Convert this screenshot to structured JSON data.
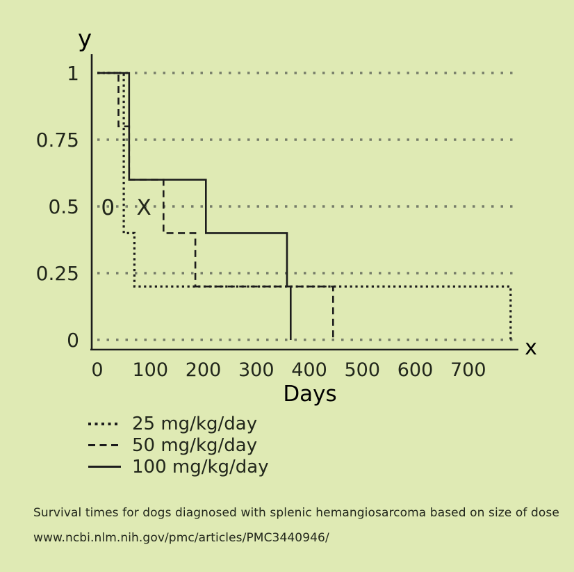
{
  "colors": {
    "background": "#dfeab4",
    "line": "#1c1c1c",
    "grid": "#6b7261",
    "text": "#21261b"
  },
  "chart_data": {
    "type": "line",
    "subtype": "kaplan-meier-step",
    "title": "",
    "xlabel": "Days",
    "ylabel": "",
    "x_axis_letter": "x",
    "y_axis_letter": "y",
    "xlim": [
      0,
      800
    ],
    "ylim": [
      0,
      1
    ],
    "x_ticks": [
      0,
      100,
      200,
      300,
      400,
      500,
      600,
      700
    ],
    "x_tick_labels": [
      "0",
      "100",
      "200",
      "300",
      "400",
      "500",
      "600",
      "700"
    ],
    "y_ticks": [
      0,
      0.25,
      0.5,
      0.75,
      1
    ],
    "y_tick_labels": [
      "0",
      "0.25",
      "0.5",
      "0.75",
      "1"
    ],
    "grid": "horizontal-dotted",
    "legend_position": "below-left",
    "series": [
      {
        "name": "25 mg/kg/day",
        "line_style": "dotted",
        "points": [
          [
            0,
            1
          ],
          [
            50,
            1
          ],
          [
            50,
            0.4
          ],
          [
            70,
            0.4
          ],
          [
            70,
            0.2
          ],
          [
            780,
            0.2
          ],
          [
            780,
            0
          ]
        ]
      },
      {
        "name": "50 mg/kg/day",
        "line_style": "dashed",
        "points": [
          [
            0,
            1
          ],
          [
            40,
            1
          ],
          [
            40,
            0.8
          ],
          [
            60,
            0.8
          ],
          [
            60,
            0.6
          ],
          [
            125,
            0.6
          ],
          [
            125,
            0.4
          ],
          [
            185,
            0.4
          ],
          [
            185,
            0.2
          ],
          [
            445,
            0.2
          ],
          [
            445,
            0
          ]
        ]
      },
      {
        "name": "100 mg/kg/day",
        "line_style": "solid",
        "points": [
          [
            0,
            1
          ],
          [
            60,
            1
          ],
          [
            60,
            0.6
          ],
          [
            205,
            0.6
          ],
          [
            205,
            0.4
          ],
          [
            358,
            0.4
          ],
          [
            358,
            0.2
          ],
          [
            365,
            0.2
          ],
          [
            365,
            0
          ]
        ]
      }
    ],
    "annotations": [
      {
        "text": "0",
        "x": 20,
        "y": 0.5
      },
      {
        "text": "X",
        "x": 88,
        "y": 0.5
      }
    ]
  },
  "caption": {
    "line1": "Survival times for dogs diagnosed with splenic hemangiosarcoma based on size of dose",
    "line2": "www.ncbi.nlm.nih.gov/pmc/articles/PMC3440946/"
  }
}
